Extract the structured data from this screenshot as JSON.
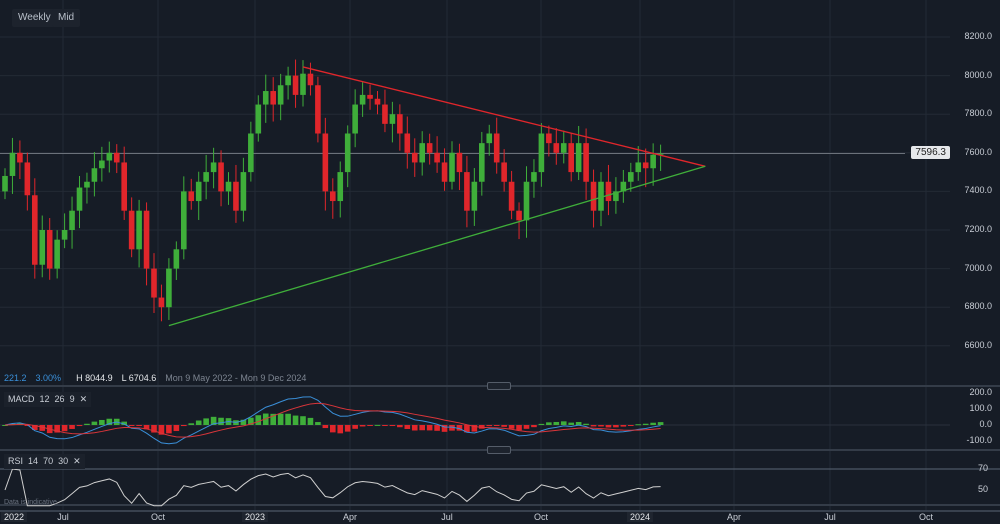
{
  "toolbar": {
    "interval": "Weekly",
    "price_type": "Mid"
  },
  "info": {
    "value": "221.2",
    "pct": "3.00%",
    "high": "H 8044.9",
    "low": "L 6704.6",
    "range": "Mon 9 May 2022 - Mon 9 Dec 2024"
  },
  "current_price": "7596.3",
  "indicators": {
    "macd": {
      "name": "MACD",
      "p1": "12",
      "p2": "26",
      "p3": "9",
      "close": "✕"
    },
    "rsi": {
      "name": "RSI",
      "p1": "14",
      "p2": "70",
      "p3": "30",
      "close": "✕"
    }
  },
  "footer_note": "Data is indicative",
  "colors": {
    "up": "#3fae3a",
    "down": "#e0262b",
    "macd": "#3a8fd8",
    "signal": "#d9353a",
    "rsi": "#d0d0d0",
    "background": "#161c26"
  },
  "chart_data": {
    "type": "candlestick",
    "interval": "weekly",
    "start": "2022-05-09",
    "first_open": 7400,
    "closes": [
      7480,
      7600,
      7550,
      7380,
      7020,
      7200,
      7000,
      7150,
      7200,
      7300,
      7420,
      7450,
      7520,
      7560,
      7600,
      7550,
      7300,
      7100,
      7300,
      7000,
      6850,
      6800,
      7000,
      7100,
      7400,
      7350,
      7450,
      7500,
      7550,
      7400,
      7450,
      7300,
      7500,
      7700,
      7850,
      7920,
      7850,
      7950,
      8000,
      7900,
      8010,
      7950,
      7700,
      7400,
      7350,
      7500,
      7700,
      7850,
      7900,
      7880,
      7850,
      7750,
      7800,
      7700,
      7600,
      7550,
      7650,
      7600,
      7550,
      7450,
      7600,
      7500,
      7300,
      7450,
      7650,
      7700,
      7550,
      7450,
      7300,
      7250,
      7450,
      7500,
      7700,
      7650,
      7600,
      7650,
      7500,
      7650,
      7450,
      7300,
      7450,
      7350,
      7400,
      7450,
      7500,
      7550,
      7520,
      7590,
      7596.3
    ],
    "yaxis": {
      "ticks": [
        8200.0,
        8000.0,
        7800.0,
        7600.0,
        7400.0,
        7200.0,
        7000.0,
        6800.0,
        6600.0
      ],
      "range": [
        6540,
        8260
      ]
    },
    "xaxis": {
      "ticks": [
        "2022",
        "Jul",
        "Oct",
        "2023",
        "Apr",
        "Jul",
        "Oct",
        "2024",
        "Apr",
        "Jul",
        "Oct"
      ]
    },
    "trendlines": [
      {
        "color": "#e0262b",
        "from": {
          "date": "2023-02-13",
          "value": 8044.9
        },
        "to": {
          "date": "2024-02-26",
          "value": 7530
        }
      },
      {
        "color": "#3fae3a",
        "from": {
          "date": "2022-10-10",
          "value": 6704.6
        },
        "to": {
          "date": "2024-02-26",
          "value": 7530
        }
      }
    ],
    "macd_axis": {
      "ticks": [
        "200.0",
        "100.0",
        "0.0",
        "-100.0"
      ]
    },
    "rsi_axis": {
      "ticks": [
        "70",
        "50"
      ],
      "levels": [
        70,
        30
      ]
    }
  }
}
